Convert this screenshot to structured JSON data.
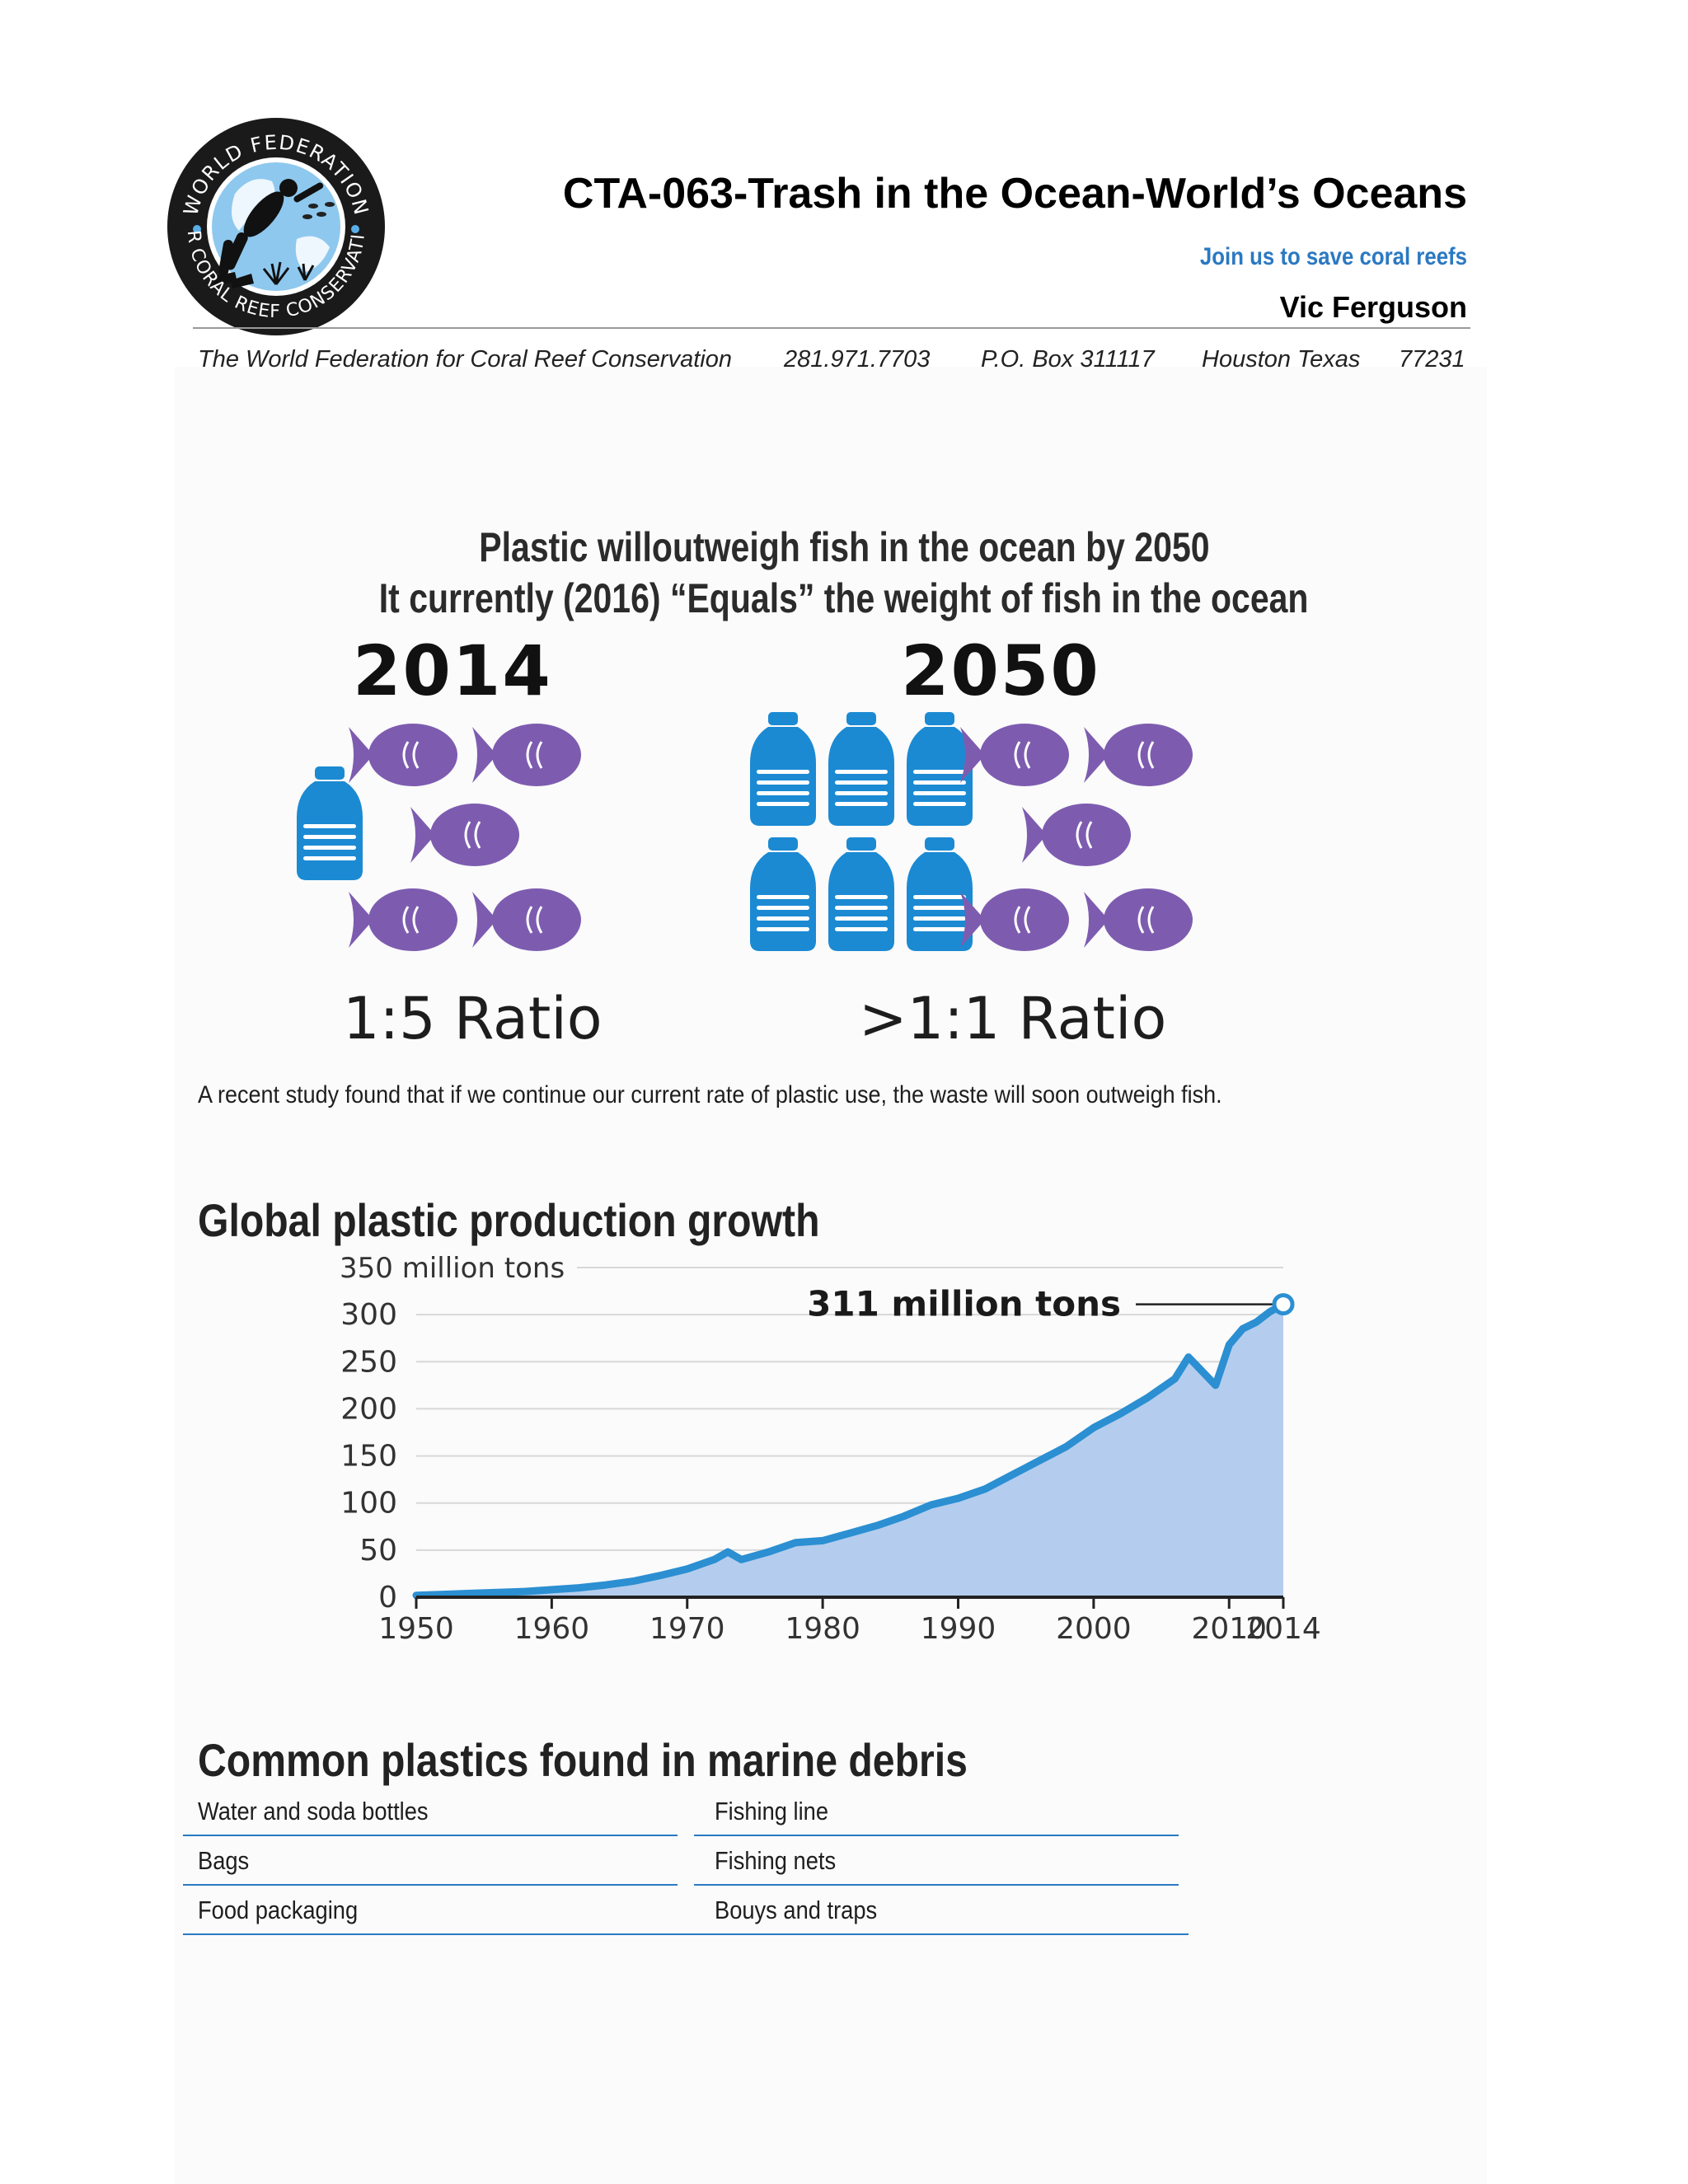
{
  "header": {
    "title": "CTA-063-Trash in the Ocean-World’s Oceans",
    "tagline": "Join us to save coral reefs",
    "author": "Vic Ferguson",
    "org": "The World Federation for Coral Reef Conservation",
    "phone": "281.971.7703",
    "po_box": "P.O. Box 311117",
    "city": "Houston Texas",
    "zip": "77231",
    "logo_text": "WORLD FEDERATION FOR CORAL REEF CONSERVATION"
  },
  "infographic": {
    "headline_1": "Plastic willoutweigh fish in the ocean by 2050",
    "headline_2": "It currently (2016) “Equals” the weight of fish in the ocean",
    "year_left": "2014",
    "year_right": "2050",
    "ratio_left": "1:5 Ratio",
    "ratio_right": ">1:1 Ratio",
    "left_bottles": 1,
    "left_fish": 5,
    "right_bottles": 6,
    "right_fish": 5,
    "caption": "A recent study found that if we continue our current rate of plastic use, the waste will soon outweigh fish.",
    "bottle_color": "#1b8ad3",
    "fish_color": "#7d5cb0"
  },
  "production": {
    "section_title": "Global plastic production growth",
    "chart_data": {
      "type": "area",
      "title": "",
      "ylabel": "350 million tons",
      "xlabel": "",
      "ylim": [
        0,
        350
      ],
      "xlim": [
        1950,
        2014
      ],
      "y_ticks": [
        0,
        50,
        100,
        150,
        200,
        250,
        300
      ],
      "y_tick_labels": [
        "0",
        "50",
        "100",
        "150",
        "200",
        "250",
        "300"
      ],
      "x_ticks": [
        1950,
        1960,
        1970,
        1980,
        1990,
        2000,
        2010,
        2014
      ],
      "x_tick_labels": [
        "1950",
        "1960",
        "1970",
        "1980",
        "1990",
        "2000",
        "2010",
        "2014"
      ],
      "annotation": "311 million tons",
      "grid": true,
      "line_color": "#2b8fd2",
      "fill_color": "#b4cdee",
      "x": [
        1950,
        1952,
        1954,
        1956,
        1958,
        1960,
        1962,
        1964,
        1966,
        1968,
        1970,
        1972,
        1973,
        1974,
        1976,
        1978,
        1980,
        1982,
        1984,
        1986,
        1988,
        1990,
        1992,
        1994,
        1996,
        1998,
        2000,
        2002,
        2004,
        2006,
        2007,
        2008,
        2009,
        2010,
        2011,
        2012,
        2013,
        2014
      ],
      "y": [
        2,
        3,
        4,
        5,
        6,
        8,
        10,
        13,
        17,
        23,
        30,
        40,
        48,
        40,
        48,
        58,
        60,
        68,
        76,
        86,
        98,
        105,
        115,
        130,
        145,
        160,
        180,
        195,
        212,
        232,
        255,
        240,
        225,
        268,
        285,
        292,
        303,
        311
      ]
    }
  },
  "debris": {
    "section_title": "Common plastics found in marine debris",
    "left": [
      "Water and soda bottles",
      "Bags",
      "Food packaging"
    ],
    "right": [
      "Fishing line",
      "Fishing nets",
      "Bouys and traps"
    ]
  }
}
